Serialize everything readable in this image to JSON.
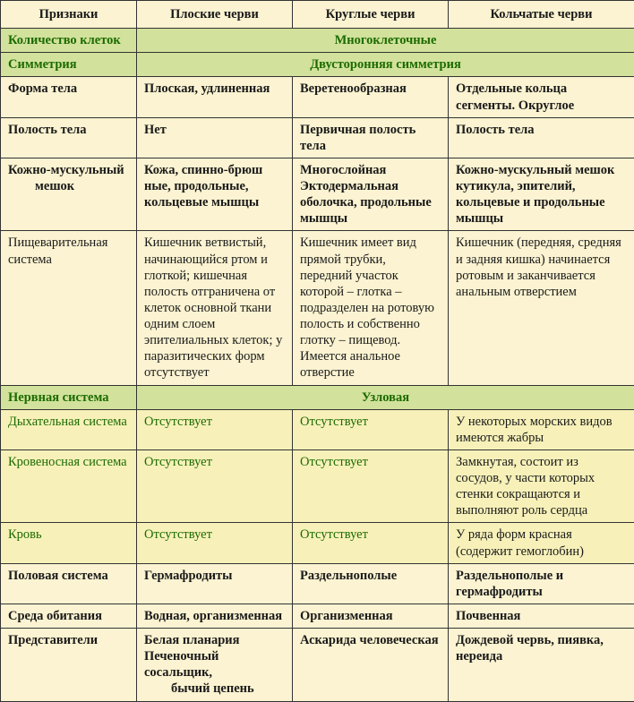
{
  "colors": {
    "bg_page": "#f5eeca",
    "bg_header": "#fbf3d1",
    "bg_green_band": "#d2e29c",
    "bg_yellow_band": "#f7f1b9",
    "text_green": "#1c6b00",
    "text_black": "#1a1a1a",
    "border": "#333333"
  },
  "typography": {
    "base_font_pt": 11,
    "family": "Times New Roman"
  },
  "structure_type": "table",
  "headers": [
    "Признаки",
    "Плоские черви",
    "Круглые черви",
    "Кольчатые черви"
  ],
  "rows": {
    "r1": {
      "label": "Количество клеток",
      "span": "Многоклеточные"
    },
    "r2": {
      "label": "Симметрия",
      "span": "Двусторонняя симметрия"
    },
    "r3": {
      "label": "Форма тела",
      "c1": "Плоская, удлиненная",
      "c2": "Веретенообразная",
      "c3": "Отдельные кольца сегменты. Округлое"
    },
    "r4": {
      "label": "Полость тела",
      "c1": "Нет",
      "c2": "Первичная полость тела",
      "c3": "Полость тела"
    },
    "r5": {
      "label": "Кожно-мускульный",
      "label2": "мешок",
      "c1": "Кожа, спинно-брюш ные, продольные, кольцевые мышцы",
      "c2": "Многослойная Эктодермальная оболочка, продольные мышцы",
      "c3": "Кожно-мускульный мешок кутикула, эпителий, кольцевые и продольные мышцы"
    },
    "r6": {
      "label": "Пищеварительная система",
      "c1": "Кишечник ветвистый, начинающийся ртом и глоткой; кишечная полость отграничена от клеток основной ткани одним слоем эпителиальных клеток; у паразитических форм отсутствует",
      "c2": "Кишечник имеет вид прямой трубки, передний участок которой – глотка – подразделен на ротовую полость и собственно глотку – пищевод. Имеется анальное отверстие",
      "c3": "Кишечник (передняя, средняя и задняя кишка) начинается ротовым и заканчивается анальным отверстием"
    },
    "r7": {
      "label": "Нервная система",
      "span": "Узловая"
    },
    "r8": {
      "label": "Дыхательная система",
      "c1": "Отсутствует",
      "c2": "Отсутствует",
      "c3": "У некоторых морских видов имеются жабры"
    },
    "r9": {
      "label": "Кровеносная система",
      "c1": "Отсутствует",
      "c2": "Отсутствует",
      "c3": "Замкнутая, состоит из сосудов, у части которых стенки сокращаются и выполняют роль сердца"
    },
    "r10": {
      "label": "Кровь",
      "c1": "Отсутствует",
      "c2": "Отсутствует",
      "c3": "У ряда форм красная (содержит гемоглобин)"
    },
    "r11": {
      "label": "Половая система",
      "c1": "Гермафродиты",
      "c2": "Раздельнополые",
      "c3": "Раздельнополые и гермафродиты"
    },
    "r12": {
      "label": "Среда обитания",
      "c1": "Водная, организменная",
      "c2": "Организменная",
      "c3": "Почвенная"
    },
    "r13": {
      "label": "Представители",
      "c1": "Белая планария Печеночный сосальщик,",
      "c1b": "бычий цепень",
      "c2": "Аскарида человеческая",
      "c3": "Дождевой червь, пиявка, нереида"
    }
  }
}
